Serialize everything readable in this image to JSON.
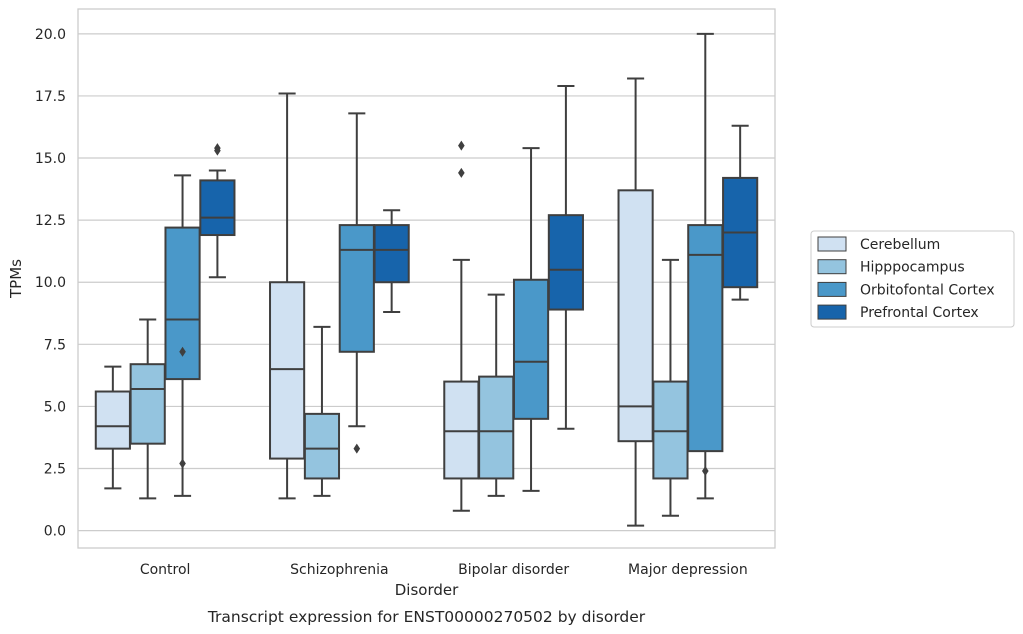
{
  "chart_data": {
    "type": "box",
    "title": "",
    "caption": "Transcript expression for ENST00000270502 by disorder",
    "xlabel": "Disorder",
    "ylabel": "TPMs",
    "ylim": [
      -0.7,
      21.0
    ],
    "yticks": [
      0.0,
      2.5,
      5.0,
      7.5,
      10.0,
      12.5,
      15.0,
      17.5,
      20.0
    ],
    "ytick_labels": [
      "0.0",
      "2.5",
      "5.0",
      "7.5",
      "10.0",
      "12.5",
      "15.0",
      "17.5",
      "20.0"
    ],
    "grid": "horizontal",
    "legend_placement": "right",
    "categories": [
      "Control",
      "Schizophrenia",
      "Bipolar disorder",
      "Major depression"
    ],
    "series": [
      {
        "name": "Cerebellum",
        "color": "#d0e1f2",
        "boxes": [
          {
            "whisker_low": 1.7,
            "q1": 3.3,
            "median": 4.2,
            "q3": 5.6,
            "whisker_high": 6.6,
            "outliers": []
          },
          {
            "whisker_low": 1.3,
            "q1": 2.9,
            "median": 6.5,
            "q3": 10.0,
            "whisker_high": 17.6,
            "outliers": []
          },
          {
            "whisker_low": 0.8,
            "q1": 2.1,
            "median": 4.0,
            "q3": 6.0,
            "whisker_high": 10.9,
            "outliers": [
              15.5,
              14.4
            ]
          },
          {
            "whisker_low": 0.2,
            "q1": 3.6,
            "median": 5.0,
            "q3": 13.7,
            "whisker_high": 18.2,
            "outliers": []
          }
        ]
      },
      {
        "name": "Hipppocampus",
        "color": "#94c4df",
        "boxes": [
          {
            "whisker_low": 1.3,
            "q1": 3.5,
            "median": 5.7,
            "q3": 6.7,
            "whisker_high": 8.5,
            "outliers": []
          },
          {
            "whisker_low": 1.4,
            "q1": 2.1,
            "median": 3.3,
            "q3": 4.7,
            "whisker_high": 8.2,
            "outliers": []
          },
          {
            "whisker_low": 1.4,
            "q1": 2.1,
            "median": 4.0,
            "q3": 6.2,
            "whisker_high": 9.5,
            "outliers": []
          },
          {
            "whisker_low": 0.6,
            "q1": 2.1,
            "median": 4.0,
            "q3": 6.0,
            "whisker_high": 10.9,
            "outliers": []
          }
        ]
      },
      {
        "name": "Orbitofontal Cortex",
        "color": "#4a98c9",
        "boxes": [
          {
            "whisker_low": 1.4,
            "q1": 6.1,
            "median": 8.5,
            "q3": 12.2,
            "whisker_high": 14.3,
            "outliers": [
              7.2,
              2.7
            ]
          },
          {
            "whisker_low": 4.2,
            "q1": 7.2,
            "median": 11.3,
            "q3": 12.3,
            "whisker_high": 16.8,
            "outliers": [
              3.3
            ]
          },
          {
            "whisker_low": 1.6,
            "q1": 4.5,
            "median": 6.8,
            "q3": 10.1,
            "whisker_high": 15.4,
            "outliers": []
          },
          {
            "whisker_low": 1.3,
            "q1": 3.2,
            "median": 11.1,
            "q3": 12.3,
            "whisker_high": 20.0,
            "outliers": [
              2.4
            ]
          }
        ]
      },
      {
        "name": "Prefrontal Cortex",
        "color": "#1764ab",
        "boxes": [
          {
            "whisker_low": 10.2,
            "q1": 11.9,
            "median": 12.6,
            "q3": 14.1,
            "whisker_high": 14.5,
            "outliers": [
              15.4,
              15.3
            ]
          },
          {
            "whisker_low": 8.8,
            "q1": 10.0,
            "median": 11.3,
            "q3": 12.3,
            "whisker_high": 12.9,
            "outliers": []
          },
          {
            "whisker_low": 4.1,
            "q1": 8.9,
            "median": 10.5,
            "q3": 12.7,
            "whisker_high": 17.9,
            "outliers": []
          },
          {
            "whisker_low": 9.3,
            "q1": 9.8,
            "median": 12.0,
            "q3": 14.2,
            "whisker_high": 16.3,
            "outliers": []
          }
        ]
      }
    ]
  }
}
